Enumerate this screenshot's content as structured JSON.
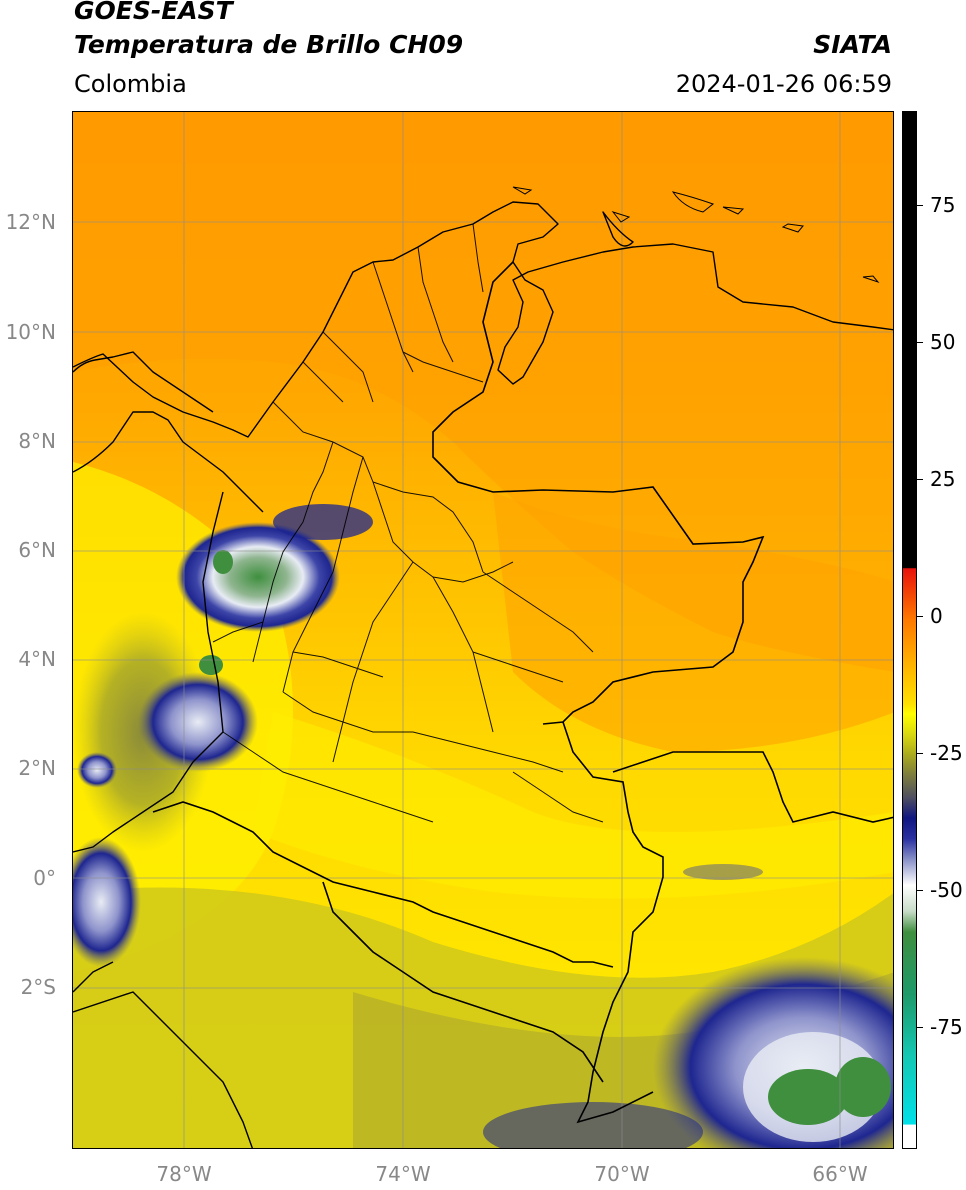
{
  "header": {
    "title_line1": "GOES-EAST",
    "title_line2": "Temperatura de Brillo CH09",
    "brand": "SIATA",
    "region": "Colombia",
    "timestamp": "2024-01-26 06:59"
  },
  "axes": {
    "lat_labels": [
      "12°N",
      "10°N",
      "8°N",
      "6°N",
      "4°N",
      "2°N",
      "0°",
      "2°S"
    ],
    "lon_labels": [
      "78°W",
      "74°W",
      "70°W",
      "66°W"
    ]
  },
  "colorbar": {
    "labels": [
      "75",
      "50",
      "25",
      "0",
      "-25",
      "-50",
      "-75"
    ],
    "colors": {
      "black": "#000000",
      "red": "#e8120c",
      "orange": "#ff9800",
      "yellow": "#ffff00",
      "olive": "#a8a820",
      "navy": "#101680",
      "white": "#ffffff",
      "green": "#3f8f3f",
      "teal": "#14c8b4",
      "cyan": "#00e0e8"
    }
  },
  "map_colors": {
    "sea_north": "#ff9b00",
    "land_orange": "#ffac00",
    "yellow": "#fff200",
    "olive": "#b5b12a",
    "cloud_navy": "#1e2690",
    "cloud_white": "#e8ecf4",
    "cloud_green": "#3f8f3f"
  }
}
